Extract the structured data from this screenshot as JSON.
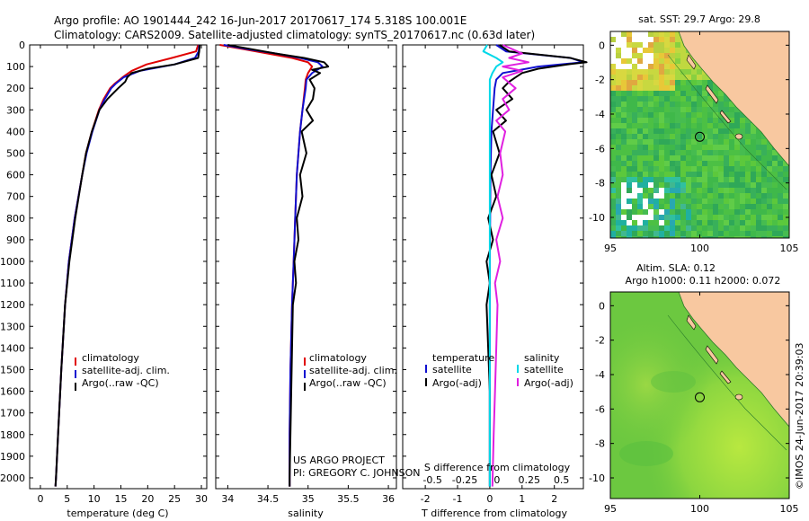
{
  "header": {
    "line1": "Argo profile: AO 1901444_242 16-Jun-2017 20170617_174 5.318S 100.001E",
    "line2": "Climatology: CARS2009. Satellite-adjusted climatology: synTS_20170617.nc (0.63d later)"
  },
  "colors": {
    "climatology": "#e00000",
    "satellite": "#1010d0",
    "argo": "#000000",
    "sal_satellite": "#00d8e8",
    "sal_argo": "#e020e0",
    "land": "#f8c8a0",
    "ocean_base": "#50c840"
  },
  "depth_axis": {
    "min": 0,
    "max": 2050,
    "ticks": [
      0,
      100,
      200,
      300,
      400,
      500,
      600,
      700,
      800,
      900,
      1000,
      1100,
      1200,
      1300,
      1400,
      1500,
      1600,
      1700,
      1800,
      1900,
      2000
    ]
  },
  "chart_data": [
    {
      "type": "line",
      "panel": "temperature",
      "xlabel": "temperature (deg C)",
      "xlim": [
        -2,
        31
      ],
      "xticks": [
        0,
        5,
        10,
        15,
        20,
        25,
        30
      ],
      "legend": [
        "climatology",
        "satellite-adj. clim.",
        "Argo(..raw -QC)"
      ],
      "series": [
        {
          "name": "climatology",
          "depth": [
            0,
            30,
            60,
            90,
            120,
            150,
            180,
            200,
            250,
            300,
            400,
            500,
            600,
            800,
            1000,
            1200,
            1500,
            1800,
            2000,
            2040
          ],
          "values": [
            29.4,
            29.0,
            24.5,
            19.8,
            17.0,
            15.3,
            13.8,
            13.0,
            11.8,
            10.9,
            9.6,
            8.5,
            7.8,
            6.4,
            5.3,
            4.6,
            3.9,
            3.3,
            2.9,
            2.8
          ]
        },
        {
          "name": "satellite-adj. clim.",
          "depth": [
            0,
            30,
            60,
            90,
            120,
            150,
            180,
            200,
            250,
            300,
            400,
            500,
            600,
            800,
            1000,
            1200,
            1500,
            1800,
            2000,
            2040
          ],
          "values": [
            29.6,
            29.5,
            28.8,
            25.0,
            18.5,
            15.5,
            14.0,
            13.2,
            12.0,
            11.0,
            9.7,
            8.6,
            7.8,
            6.4,
            5.3,
            4.6,
            3.9,
            3.3,
            2.9,
            2.8
          ]
        },
        {
          "name": "Argo(..raw -QC)",
          "depth": [
            0,
            30,
            60,
            90,
            110,
            130,
            150,
            170,
            200,
            250,
            300,
            400,
            500,
            600,
            800,
            1000,
            1200,
            1500,
            1800,
            2000,
            2040
          ],
          "values": [
            29.7,
            29.6,
            29.4,
            25.0,
            20.0,
            17.0,
            16.2,
            15.8,
            14.5,
            12.5,
            11.0,
            9.6,
            8.5,
            7.8,
            6.5,
            5.4,
            4.6,
            3.9,
            3.3,
            2.9,
            2.8
          ]
        }
      ]
    },
    {
      "type": "line",
      "panel": "salinity",
      "xlabel": "salinity",
      "xlim": [
        33.85,
        36.1
      ],
      "xticks": [
        34,
        34.5,
        35,
        35.5,
        36
      ],
      "legend": [
        "climatology",
        "satellite-adj. clim.",
        "Argo(..raw -QC)"
      ],
      "annotation": [
        "US ARGO PROJECT",
        "PI: GREGORY C. JOHNSON"
      ],
      "series": [
        {
          "name": "climatology",
          "depth": [
            0,
            20,
            40,
            60,
            80,
            100,
            130,
            160,
            200,
            300,
            400,
            600,
            800,
            1000,
            1200,
            1500,
            1800,
            2000,
            2040
          ],
          "values": [
            33.9,
            34.2,
            34.5,
            34.8,
            35.0,
            35.05,
            35.0,
            34.97,
            34.96,
            34.93,
            34.9,
            34.86,
            34.84,
            34.82,
            34.8,
            34.78,
            34.77,
            34.77,
            34.77
          ]
        },
        {
          "name": "satellite-adj. clim.",
          "depth": [
            0,
            20,
            40,
            60,
            80,
            100,
            130,
            160,
            200,
            300,
            400,
            600,
            800,
            1000,
            1200,
            1500,
            1800,
            2000,
            2040
          ],
          "values": [
            33.95,
            34.25,
            34.6,
            34.9,
            35.12,
            35.18,
            35.05,
            34.98,
            34.97,
            34.93,
            34.9,
            34.86,
            34.84,
            34.82,
            34.8,
            34.78,
            34.77,
            34.77,
            34.77
          ]
        },
        {
          "name": "Argo(..raw -QC)",
          "depth": [
            0,
            20,
            40,
            60,
            80,
            100,
            115,
            130,
            160,
            200,
            250,
            300,
            350,
            400,
            500,
            600,
            700,
            800,
            900,
            1000,
            1100,
            1200,
            1400,
            1600,
            1800,
            2000,
            2040
          ],
          "values": [
            34.0,
            34.3,
            34.6,
            34.95,
            35.2,
            35.25,
            35.05,
            35.15,
            35.02,
            35.08,
            35.06,
            34.98,
            35.06,
            34.92,
            34.98,
            34.9,
            34.93,
            34.86,
            34.88,
            34.83,
            34.85,
            34.81,
            34.8,
            34.79,
            34.78,
            34.77,
            34.77
          ]
        }
      ]
    },
    {
      "type": "line",
      "panel": "difference",
      "xlabel": "T difference from climatology",
      "xlabel_top": "S difference from climatology",
      "xlim": [
        -2.7,
        2.9
      ],
      "xticks": [
        -2,
        -1,
        0,
        1,
        2
      ],
      "s_xticks": [
        -0.5,
        -0.25,
        0,
        0.25,
        0.5
      ],
      "legend": {
        "temperature": [
          "satellite",
          "Argo(-adj)"
        ],
        "salinity": [
          "satellite",
          "Argo(-adj)"
        ]
      },
      "legend_titles": {
        "temperature": "temperature",
        "salinity": "salinity"
      },
      "series": [
        {
          "name": "temperature satellite",
          "depth": [
            0,
            30,
            60,
            80,
            100,
            130,
            160,
            200,
            300,
            400,
            600,
            800,
            1000,
            1500,
            2040
          ],
          "values": [
            0.2,
            0.5,
            2.5,
            2.9,
            1.5,
            0.4,
            0.2,
            0.15,
            0.1,
            0.05,
            0.02,
            0.01,
            0.0,
            0.0,
            0.0
          ]
        },
        {
          "name": "temperature Argo(-adj)",
          "depth": [
            0,
            30,
            60,
            80,
            90,
            110,
            130,
            150,
            170,
            200,
            250,
            300,
            350,
            400,
            500,
            600,
            700,
            800,
            900,
            1000,
            1100,
            1200,
            1400,
            1600,
            1800,
            2040
          ],
          "values": [
            0.3,
            0.6,
            2.5,
            3.0,
            2.4,
            1.5,
            1.0,
            0.8,
            0.6,
            0.4,
            0.7,
            0.2,
            0.5,
            0.1,
            0.3,
            0.05,
            0.2,
            -0.05,
            0.1,
            -0.1,
            0.0,
            -0.1,
            -0.05,
            0.0,
            0.0,
            0.0
          ]
        },
        {
          "name": "salinity satellite",
          "depth": [
            0,
            30,
            60,
            80,
            100,
            130,
            160,
            200,
            300,
            500,
            800,
            1200,
            1600,
            2040
          ],
          "values": [
            -0.02,
            -0.05,
            0.05,
            0.1,
            0.05,
            0.02,
            0.0,
            0.0,
            0.0,
            0.0,
            0.0,
            0.0,
            0.0,
            0.0
          ]
        },
        {
          "name": "salinity Argo(-adj)",
          "depth": [
            0,
            40,
            60,
            80,
            100,
            120,
            150,
            200,
            250,
            300,
            350,
            400,
            500,
            600,
            700,
            800,
            900,
            1000,
            1100,
            1200,
            1400,
            1600,
            1800,
            2040
          ],
          "values": [
            0.1,
            0.25,
            0.15,
            0.3,
            0.1,
            0.25,
            0.1,
            0.2,
            0.1,
            0.15,
            0.05,
            0.12,
            0.08,
            0.1,
            0.06,
            0.1,
            0.05,
            0.08,
            0.04,
            0.06,
            0.05,
            0.04,
            0.03,
            0.02
          ]
        }
      ]
    },
    {
      "type": "heatmap",
      "panel": "sst-map",
      "title": "sat. SST: 29.7 Argo: 29.8",
      "xlim": [
        95,
        105
      ],
      "ylim": [
        -11.2,
        0.8
      ],
      "xticks": [
        95,
        100,
        105
      ],
      "yticks": [
        0,
        -2,
        -4,
        -6,
        -8,
        -10
      ],
      "float_position": {
        "lon": 100.001,
        "lat": -5.318
      }
    },
    {
      "type": "heatmap",
      "panel": "sla-map",
      "title": [
        "Altim. SLA: 0.12",
        "Argo h1000: 0.11 h2000: 0.072"
      ],
      "xlim": [
        95,
        105
      ],
      "ylim": [
        -11.2,
        0.8
      ],
      "xticks": [
        95,
        100,
        105
      ],
      "yticks": [
        0,
        -2,
        -4,
        -6,
        -8,
        -10
      ],
      "float_position": {
        "lon": 100.001,
        "lat": -5.318
      }
    }
  ],
  "credit": "©IMOS 24-Jun-2017 20:39:03"
}
